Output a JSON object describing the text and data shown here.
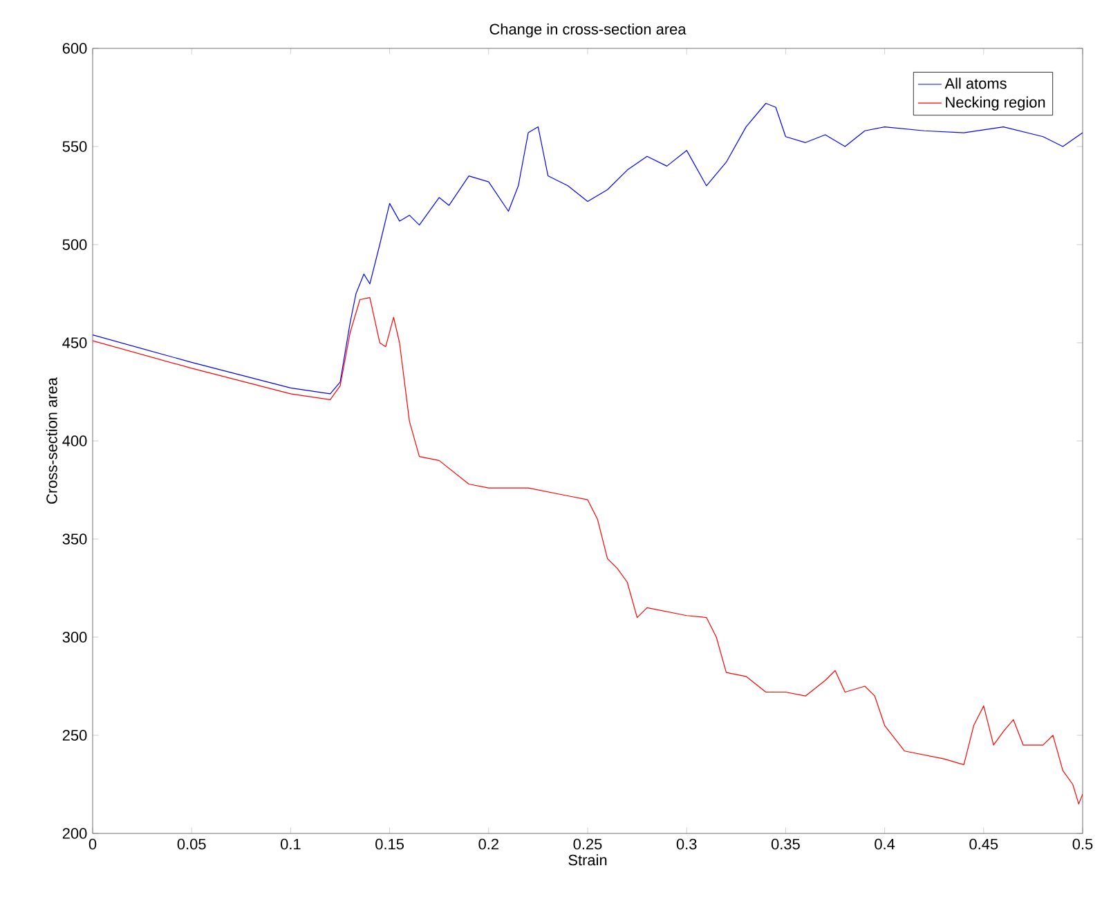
{
  "chart_data": {
    "type": "line",
    "title": "Change in cross-section area",
    "xlabel": "Strain",
    "ylabel": "Cross-section area",
    "xlim": [
      0,
      0.5
    ],
    "ylim": [
      200,
      600
    ],
    "xticks": [
      0,
      0.05,
      0.1,
      0.15,
      0.2,
      0.25,
      0.3,
      0.35,
      0.4,
      0.45,
      0.5
    ],
    "yticks": [
      200,
      250,
      300,
      350,
      400,
      450,
      500,
      550,
      600
    ],
    "legend": "top right",
    "grid": false,
    "marker": "none",
    "line_style": "solid",
    "series": [
      {
        "name": "All atoms",
        "color": "#0000ff",
        "x": [
          0,
          0.05,
          0.1,
          0.12,
          0.125,
          0.13,
          0.133,
          0.137,
          0.14,
          0.145,
          0.15,
          0.155,
          0.16,
          0.165,
          0.175,
          0.18,
          0.19,
          0.2,
          0.21,
          0.215,
          0.22,
          0.225,
          0.23,
          0.24,
          0.25,
          0.26,
          0.27,
          0.28,
          0.29,
          0.3,
          0.31,
          0.32,
          0.33,
          0.34,
          0.345,
          0.35,
          0.36,
          0.37,
          0.38,
          0.39,
          0.4,
          0.42,
          0.44,
          0.46,
          0.48,
          0.49,
          0.5
        ],
        "values": [
          454,
          440,
          427,
          424,
          430,
          460,
          475,
          485,
          480,
          500,
          521,
          512,
          515,
          510,
          524,
          520,
          535,
          532,
          517,
          530,
          557,
          560,
          535,
          530,
          522,
          528,
          538,
          545,
          540,
          548,
          530,
          542,
          560,
          572,
          570,
          555,
          552,
          556,
          550,
          558,
          560,
          558,
          557,
          560,
          555,
          550,
          557
        ]
      },
      {
        "name": "Necking region",
        "color": "#ff0000",
        "x": [
          0,
          0.05,
          0.1,
          0.12,
          0.125,
          0.13,
          0.135,
          0.14,
          0.145,
          0.148,
          0.152,
          0.155,
          0.16,
          0.165,
          0.175,
          0.19,
          0.2,
          0.22,
          0.24,
          0.25,
          0.255,
          0.26,
          0.265,
          0.27,
          0.275,
          0.28,
          0.3,
          0.31,
          0.315,
          0.32,
          0.33,
          0.34,
          0.35,
          0.36,
          0.37,
          0.375,
          0.38,
          0.39,
          0.395,
          0.4,
          0.41,
          0.42,
          0.43,
          0.44,
          0.445,
          0.45,
          0.455,
          0.46,
          0.465,
          0.47,
          0.48,
          0.485,
          0.49,
          0.495,
          0.498,
          0.5
        ],
        "values": [
          451,
          437,
          424,
          421,
          428,
          455,
          472,
          473,
          450,
          448,
          463,
          450,
          410,
          392,
          390,
          378,
          376,
          376,
          372,
          370,
          360,
          340,
          335,
          328,
          310,
          315,
          311,
          310,
          300,
          282,
          280,
          272,
          272,
          270,
          278,
          283,
          272,
          275,
          270,
          255,
          242,
          240,
          238,
          235,
          255,
          265,
          245,
          252,
          258,
          245,
          245,
          250,
          232,
          225,
          215,
          220
        ]
      }
    ]
  }
}
